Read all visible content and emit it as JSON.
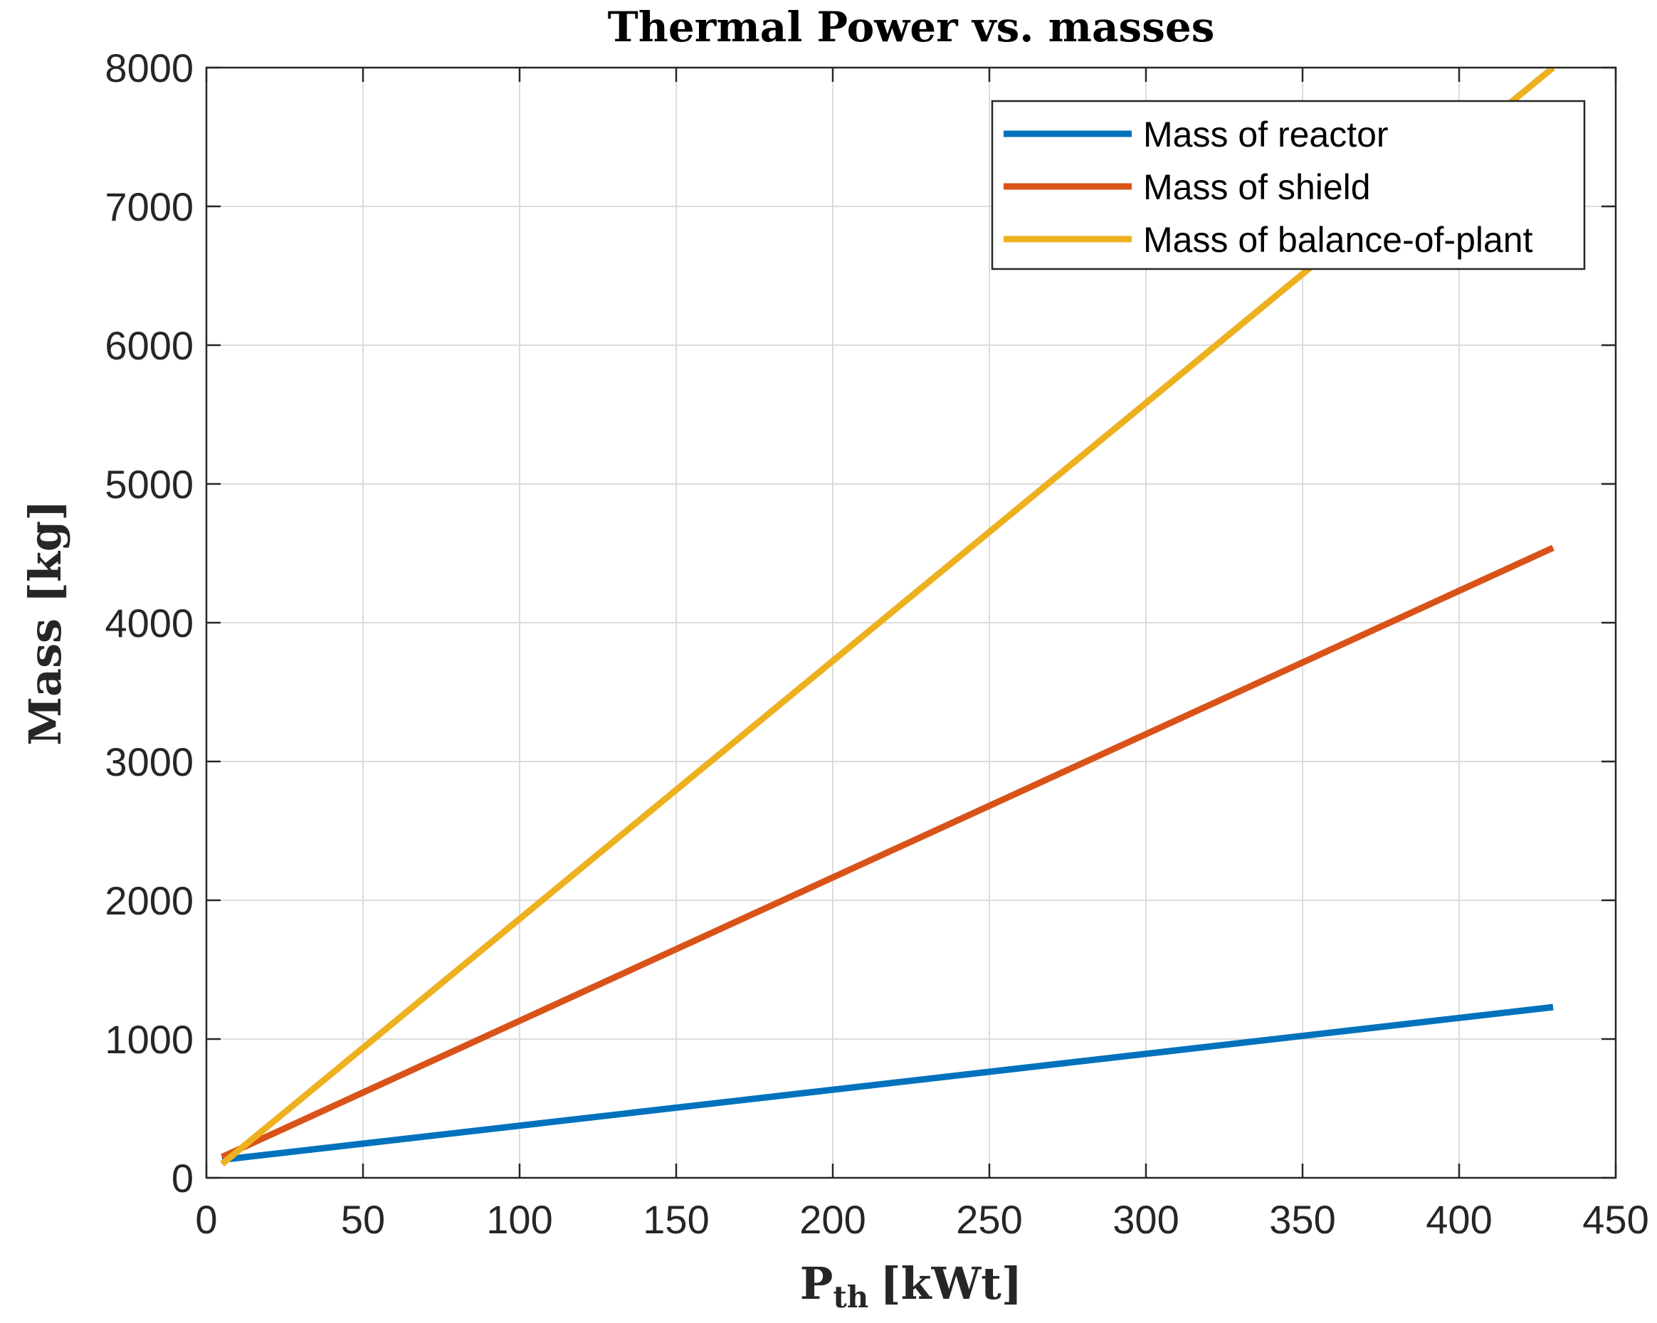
{
  "chart_data": {
    "type": "line",
    "title": "Thermal Power vs. masses",
    "xlabel_main": "P",
    "xlabel_sub": "th",
    "xlabel_unit": "[kWt]",
    "ylabel": "Mass [kg]",
    "xlim": [
      0,
      450
    ],
    "ylim": [
      0,
      8000
    ],
    "xticks": [
      0,
      50,
      100,
      150,
      200,
      250,
      300,
      350,
      400,
      450
    ],
    "yticks": [
      0,
      1000,
      2000,
      3000,
      4000,
      5000,
      6000,
      7000,
      8000
    ],
    "grid": true,
    "legend_position": "top-right",
    "series": [
      {
        "name": "Mass of reactor",
        "color": "#0072BD",
        "x": [
          5,
          430
        ],
        "y": [
          130,
          1230
        ]
      },
      {
        "name": "Mass of shield",
        "color": "#D95319",
        "x": [
          5,
          430
        ],
        "y": [
          150,
          4540
        ]
      },
      {
        "name": "Mass of balance-of-plant",
        "color": "#EDB120",
        "x": [
          5,
          430
        ],
        "y": [
          100,
          8000
        ]
      }
    ]
  }
}
